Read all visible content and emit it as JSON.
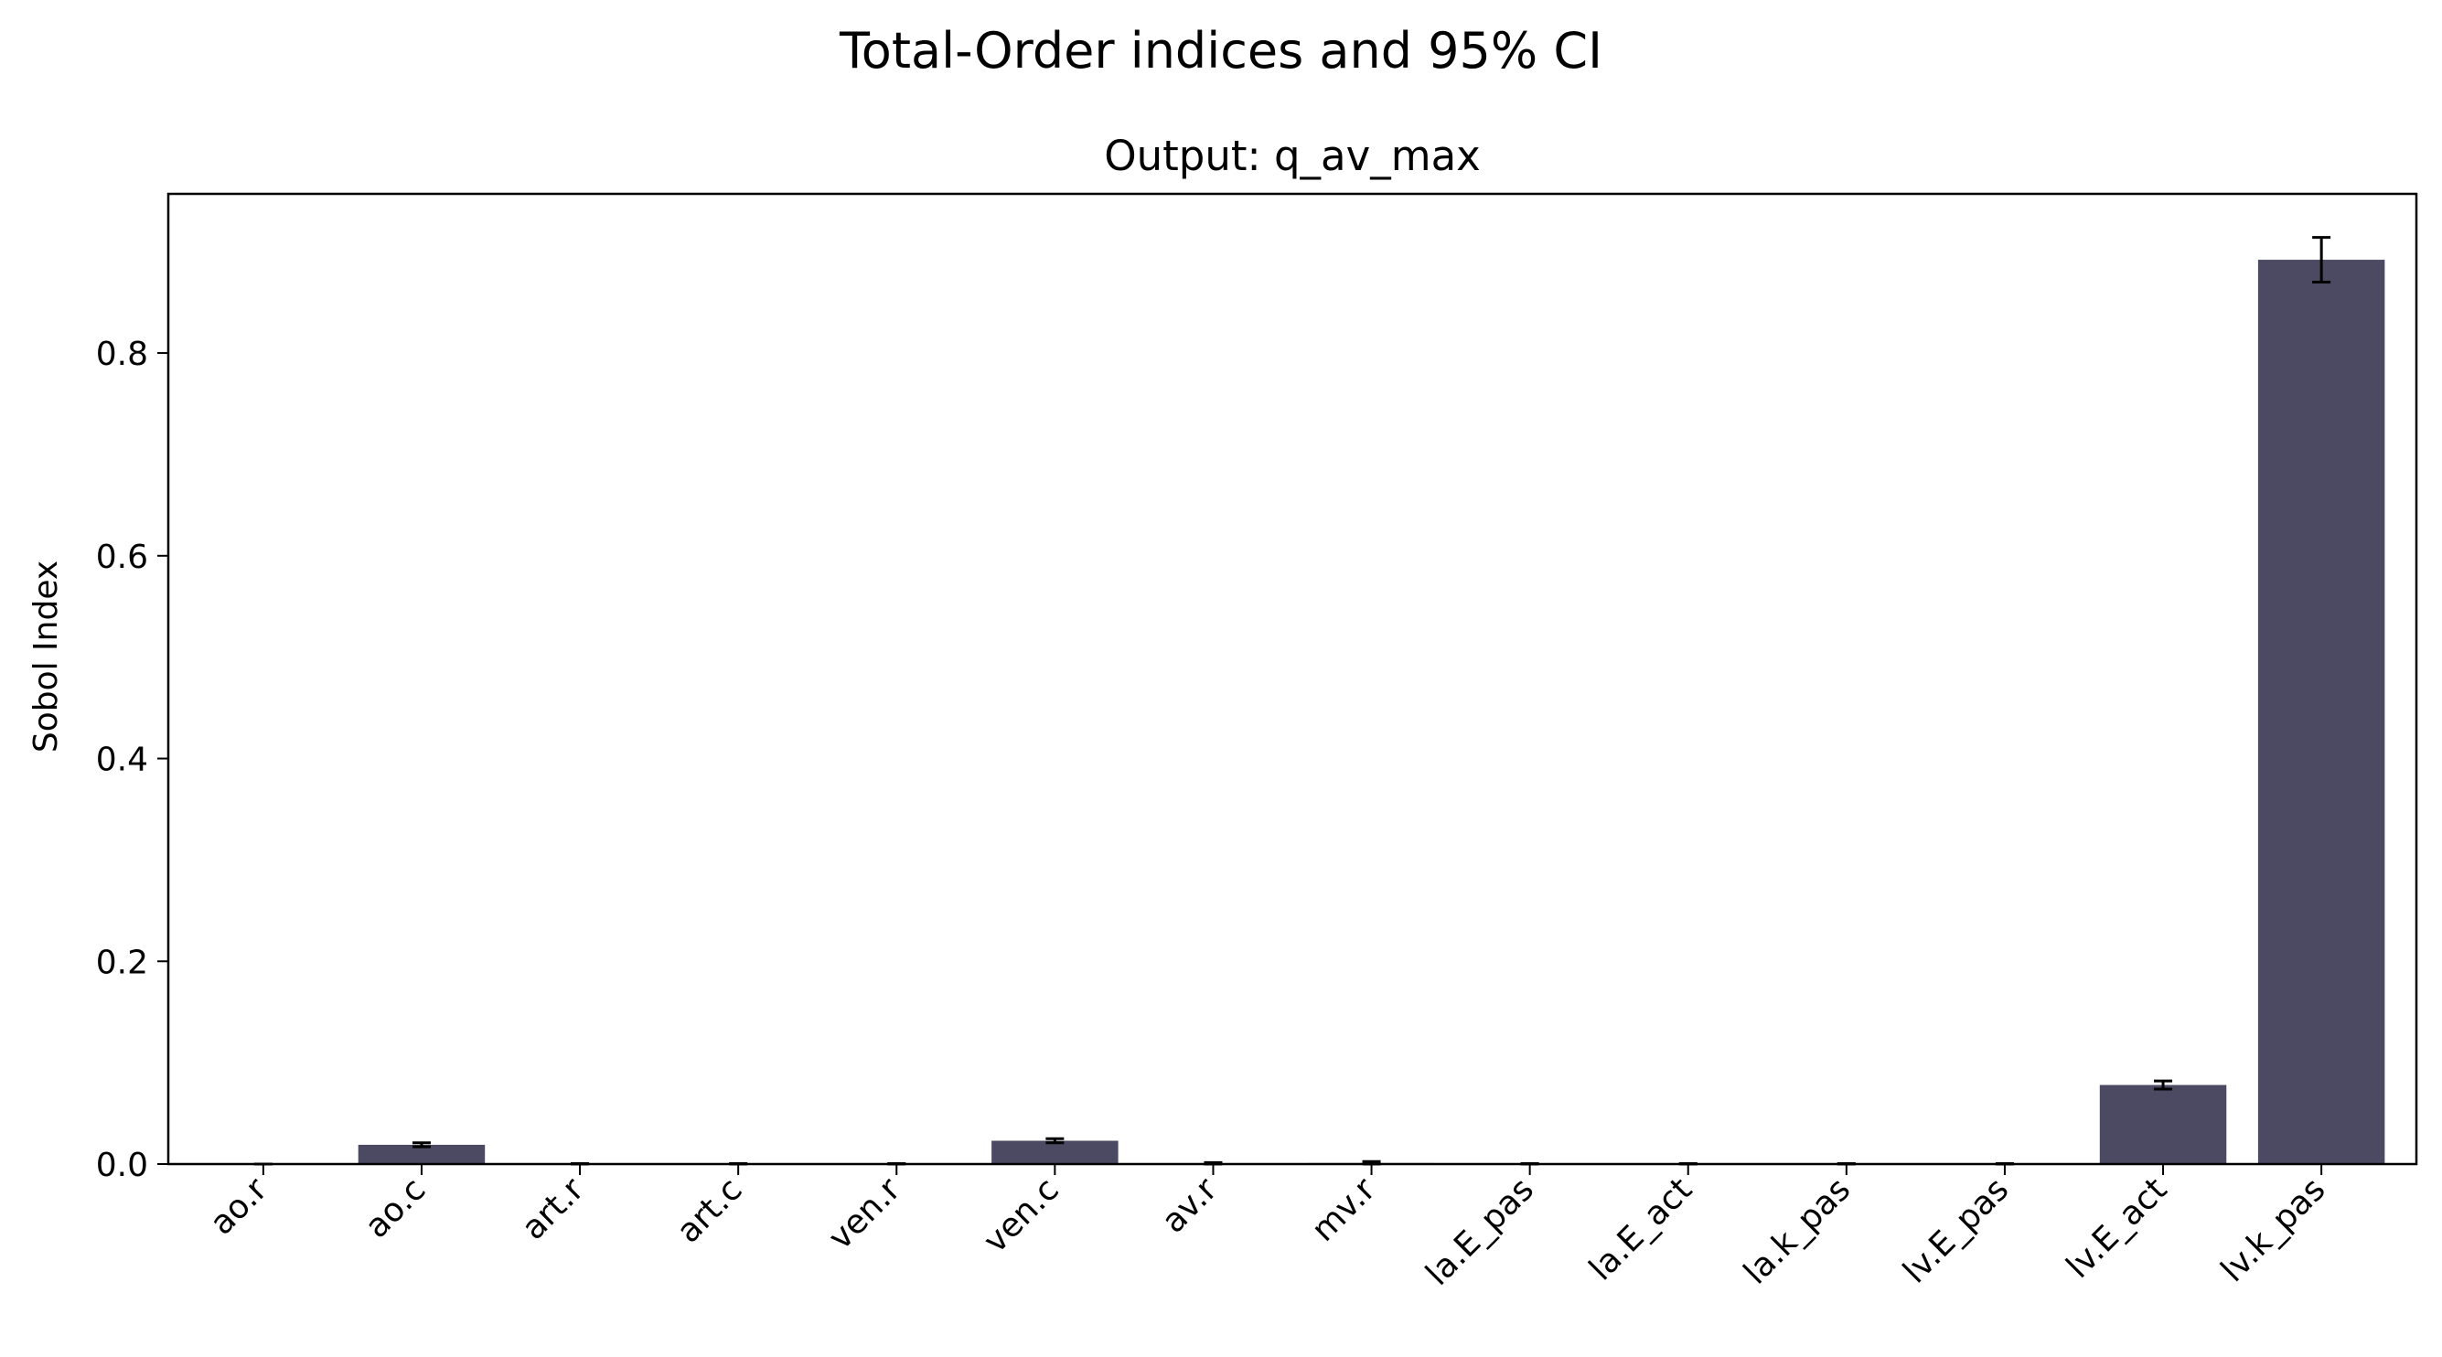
{
  "chart_data": {
    "type": "bar",
    "title": "Total-Order indices and 95% CI",
    "subtitle": "Output: q_av_max",
    "xlabel": "",
    "ylabel": "Sobol Index",
    "categories": [
      "ao.r",
      "ao.c",
      "art.r",
      "art.c",
      "ven.r",
      "ven.c",
      "av.r",
      "mv.r",
      "la.E_pas",
      "la.E_act",
      "la.k_pas",
      "lv.E_pas",
      "lv.E_act",
      "lv.k_pas"
    ],
    "series": [
      {
        "values": [
          0.0,
          0.019,
          0.0,
          0.0,
          0.0,
          0.023,
          0.0005,
          0.001,
          0.0,
          0.0,
          0.0,
          0.0,
          0.078,
          0.892
        ],
        "ci": [
          0.0,
          0.002,
          0.0005,
          0.0005,
          0.0005,
          0.002,
          0.001,
          0.0015,
          0.0005,
          0.0005,
          0.0005,
          0.0005,
          0.004,
          0.022
        ]
      }
    ],
    "ylim": [
      0.0,
      0.957
    ],
    "yticks": [
      0.0,
      0.2,
      0.4,
      0.6,
      0.8
    ],
    "ytick_labels": [
      "0.0",
      "0.2",
      "0.4",
      "0.6",
      "0.8"
    ],
    "bar_color": "#4c4a63",
    "errorbar_color": "#000000",
    "grid": false,
    "legend": "none"
  }
}
